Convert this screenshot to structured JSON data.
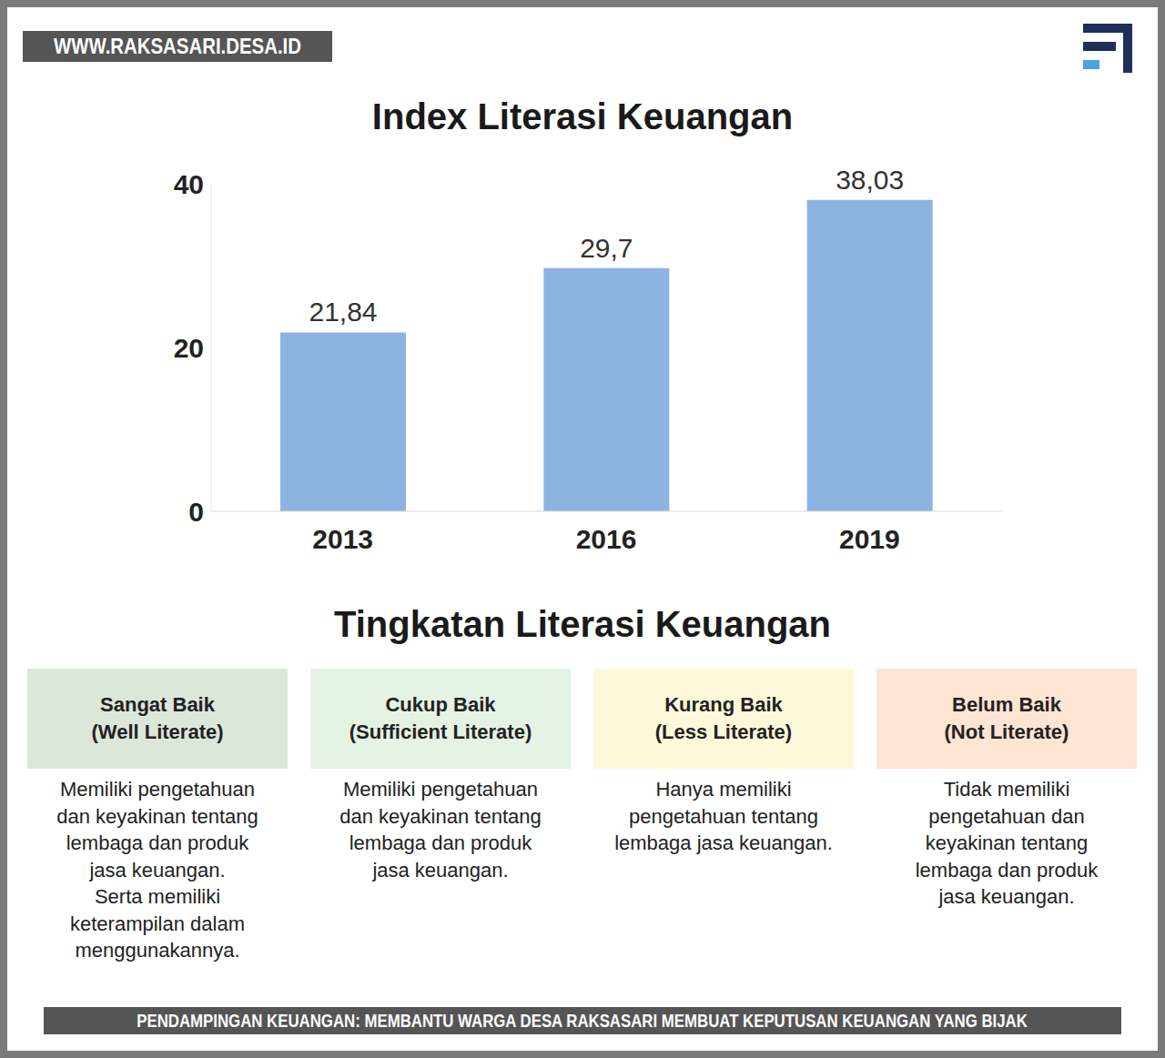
{
  "header": {
    "site": "WWW.RAKSASARI.DESA.ID"
  },
  "chart_data": {
    "type": "bar",
    "title": "Index Literasi Keuangan",
    "categories": [
      "2013",
      "2016",
      "2019"
    ],
    "values": [
      21.84,
      29.7,
      38.03
    ],
    "value_labels": [
      "21,84",
      "29,7",
      "38,03"
    ],
    "data_labels": true,
    "color": "#8db3e2",
    "ylim": [
      0,
      40
    ],
    "yticks": [
      0,
      20,
      40
    ],
    "grid": false
  },
  "levels": {
    "title": "Tingkatan Literasi Keuangan",
    "items": [
      {
        "name": "Sangat Baik",
        "subtitle": "(Well Literate)",
        "description": [
          "Memiliki pengetahuan",
          "dan keyakinan tentang",
          "lembaga dan produk",
          "jasa keuangan.",
          "Serta memiliki",
          "keterampilan dalam",
          "menggunakannya."
        ]
      },
      {
        "name": "Cukup Baik",
        "subtitle": "(Sufficient Literate)",
        "description": [
          "Memiliki pengetahuan",
          "dan keyakinan tentang",
          "lembaga dan produk",
          "jasa keuangan."
        ]
      },
      {
        "name": "Kurang Baik",
        "subtitle": "(Less Literate)",
        "description": [
          "Hanya memiliki",
          "pengetahuan tentang",
          "lembaga jasa keuangan."
        ]
      },
      {
        "name": "Belum Baik",
        "subtitle": "(Not Literate)",
        "description": [
          "Tidak memiliki",
          "pengetahuan dan",
          "keyakinan tentang",
          "lembaga dan produk",
          "jasa keuangan."
        ]
      }
    ]
  },
  "footer": "PENDAMPINGAN KEUANGAN: MEMBANTU WARGA DESA RAKSASARI MEMBUAT KEPUTUSAN KEUANGAN YANG BIJAK"
}
